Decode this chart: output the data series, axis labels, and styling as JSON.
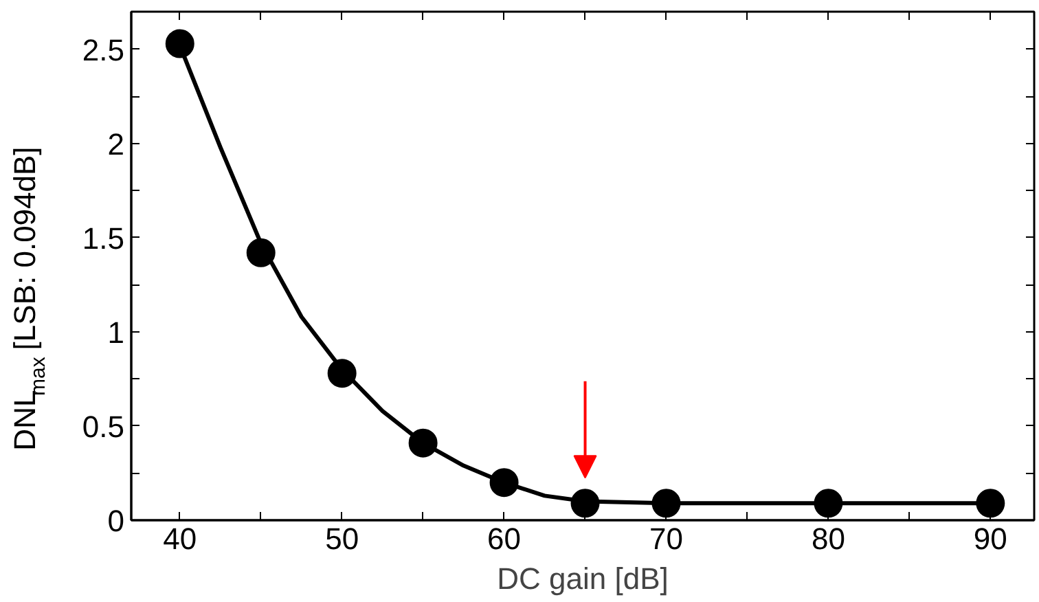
{
  "chart_data": {
    "type": "scatter",
    "xlabel": "DC gain [dB]",
    "ylabel": "DNL$_{max}$ [LSB: 0.094dB]",
    "x": [
      40,
      45,
      50,
      55,
      60,
      65,
      70,
      80,
      90
    ],
    "series": [
      {
        "color": "#000000",
        "values": [
          2.53,
          1.42,
          0.78,
          0.41,
          0.2,
          0.09,
          0.09,
          0.09,
          0.09
        ],
        "marker": "circle"
      },
      {
        "type": "line",
        "color": "#000000",
        "x": [
          40,
          42.5,
          45,
          47.5,
          50,
          52.5,
          55,
          57.5,
          60,
          62.5,
          65,
          70,
          80,
          90
        ],
        "values": [
          2.52,
          1.98,
          1.47,
          1.08,
          0.8,
          0.58,
          0.41,
          0.29,
          0.2,
          0.13,
          0.1,
          0.09,
          0.09,
          0.09
        ],
        "marker": "none",
        "line_style": "solid"
      }
    ],
    "xlim": [
      37,
      92.7
    ],
    "ylim": [
      0,
      2.7
    ],
    "xticks": [
      40,
      {
        "value": 45,
        "label": null
      },
      50,
      {
        "value": 55,
        "label": null
      },
      60,
      {
        "value": 65,
        "label": null
      },
      70,
      {
        "value": 75,
        "label": null
      },
      80,
      {
        "value": 85,
        "label": null
      },
      90
    ],
    "yticks": [
      0,
      {
        "value": 0.25,
        "label": null
      },
      0.5,
      {
        "value": 0.75,
        "label": null
      },
      1,
      {
        "value": 1.25,
        "label": null
      },
      1.5,
      {
        "value": 1.75,
        "label": null
      },
      2,
      {
        "value": 2.25,
        "label": null
      },
      2.5
    ],
    "grid": false
  }
}
